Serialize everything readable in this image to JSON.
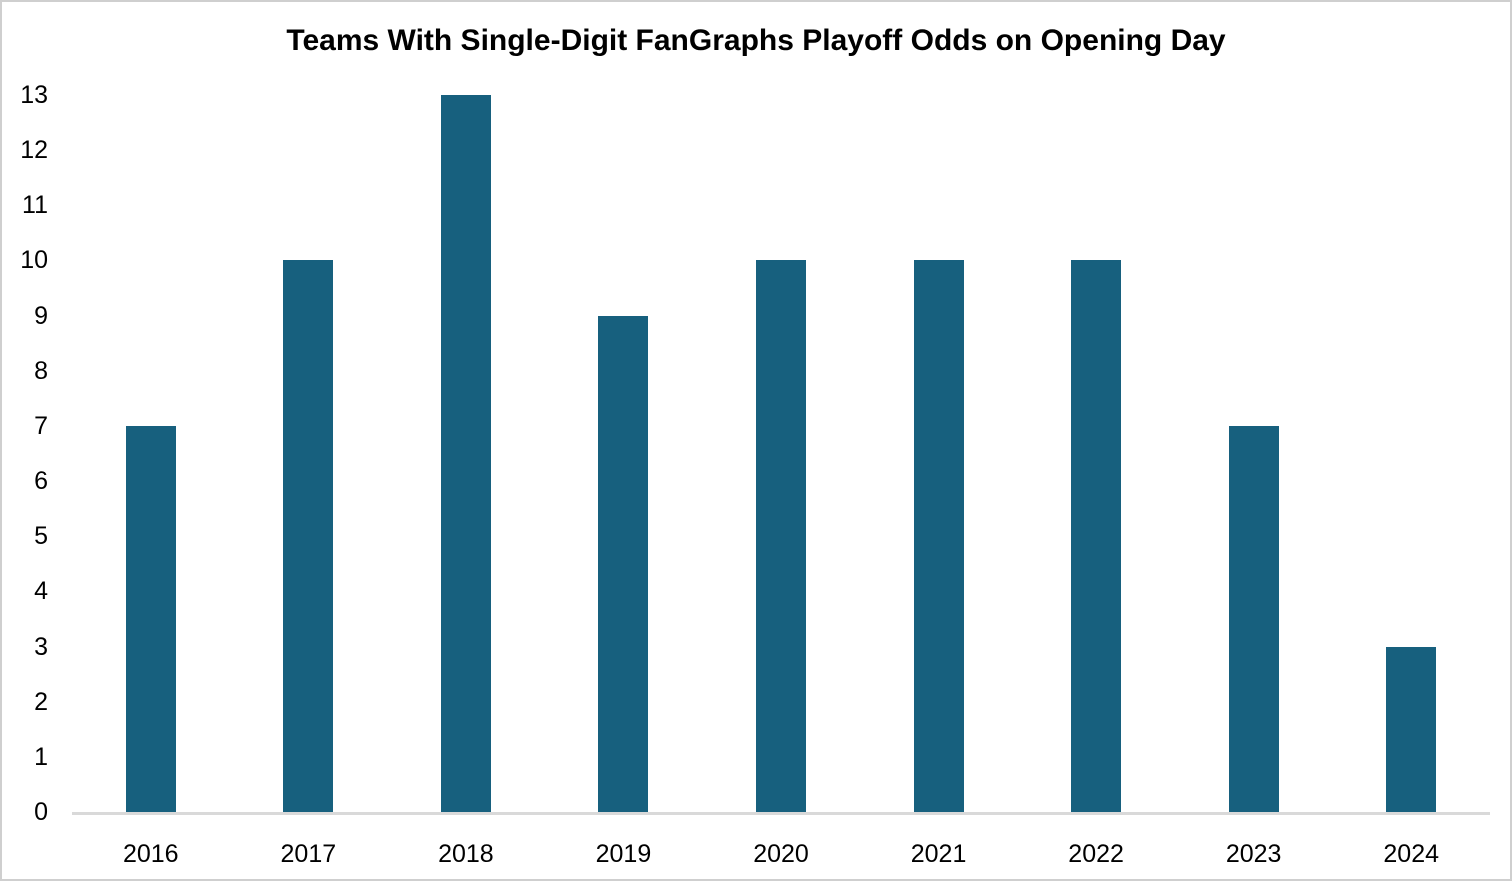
{
  "chart_data": {
    "type": "bar",
    "title": "Teams With Single-Digit FanGraphs Playoff Odds on Opening Day",
    "categories": [
      "2016",
      "2017",
      "2018",
      "2019",
      "2020",
      "2021",
      "2022",
      "2023",
      "2024"
    ],
    "values": [
      7,
      10,
      13,
      9,
      10,
      10,
      10,
      7,
      3
    ],
    "xlabel": "",
    "ylabel": "",
    "ylim": [
      0,
      13
    ],
    "ytick_step": 1,
    "grid": false,
    "legend_position": "none",
    "bar_color": "#17607E",
    "axis_line_color": "#D9D9D9",
    "text_color": "#000000",
    "background_color": "#FFFFFF",
    "border_color": "#CFCFCF"
  }
}
